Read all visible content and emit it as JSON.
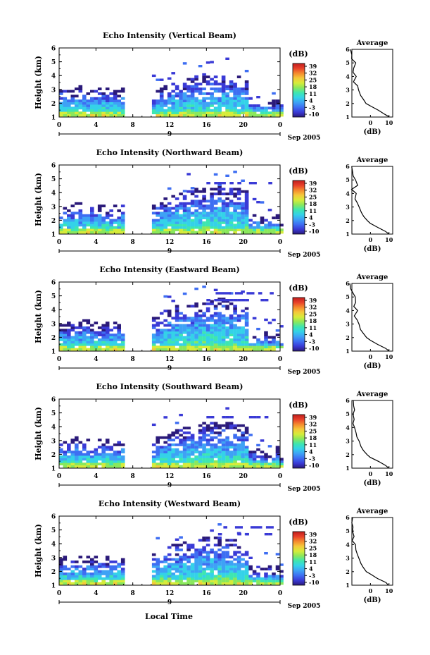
{
  "figure": {
    "bottom_xlabel": "Local Time"
  },
  "panels": [
    {
      "title": "Echo Intensity (Vertical Beam)",
      "label": "vertical",
      "avg_title": "Average",
      "avg_xlabel": "(dB)",
      "top": 4.4,
      "stripes": 0
    },
    {
      "title": "Echo Intensity (Northward Beam)",
      "label": "northward",
      "avg_title": "Average",
      "avg_xlabel": "(dB)",
      "top": 5.0,
      "stripes": 1
    },
    {
      "title": "Echo Intensity (Eastward Beam)",
      "label": "eastward",
      "avg_title": "Average",
      "avg_xlabel": "(dB)",
      "top": 5.6,
      "stripes": 2
    },
    {
      "title": "Echo Intensity (Southward Beam)",
      "label": "southward",
      "avg_title": "Average",
      "avg_xlabel": "(dB)",
      "top": 4.8,
      "stripes": 1
    },
    {
      "title": "Echo Intensity (Westward Beam)",
      "label": "westward",
      "avg_title": "Average",
      "avg_xlabel": "(dB)",
      "top": 5.2,
      "stripes": 2
    }
  ],
  "chart_data": {
    "type": "heatmap",
    "ylabel": "Height (km)",
    "y_range": [
      1,
      6
    ],
    "y_ticks": [
      "1",
      "2",
      "3",
      "4",
      "5",
      "6"
    ],
    "x_range_hours": [
      0,
      24
    ],
    "x_ticks": [
      "0",
      "4",
      "8",
      "12",
      "16",
      "20",
      "0"
    ],
    "date_tick": "9",
    "date_label": "Sep 2005",
    "colorbar": {
      "unit": "(dB)",
      "ticks": [
        "-10",
        "-3",
        "4",
        "11",
        "18",
        "25",
        "32",
        "39"
      ],
      "range": [
        -10,
        39
      ],
      "colors": [
        "#2b1a7a",
        "#3a3ad6",
        "#3e6ef2",
        "#3ea2f5",
        "#34d2e8",
        "#3ee6b0",
        "#8ae85c",
        "#d6ec3a",
        "#f5c83a",
        "#f58a2e",
        "#e8402a",
        "#c01e1e"
      ]
    },
    "data_gap_hours": [
      7,
      10
    ],
    "average_profile": {
      "xlabel": "(dB)",
      "x_range": [
        -10,
        12
      ],
      "x_ticks": [
        "0",
        "10"
      ],
      "height_km": [
        1.0,
        1.2,
        1.5,
        1.8,
        2.0,
        2.3,
        2.6,
        3.0,
        3.3,
        3.6,
        4.0,
        4.3,
        4.6,
        5.0,
        5.3,
        5.6,
        6.0
      ],
      "value_db": [
        10,
        8,
        4,
        0,
        -2,
        -4,
        -5,
        -6,
        -7,
        -8,
        -8,
        -9,
        -8,
        -9,
        -9,
        -10,
        -10
      ]
    }
  }
}
